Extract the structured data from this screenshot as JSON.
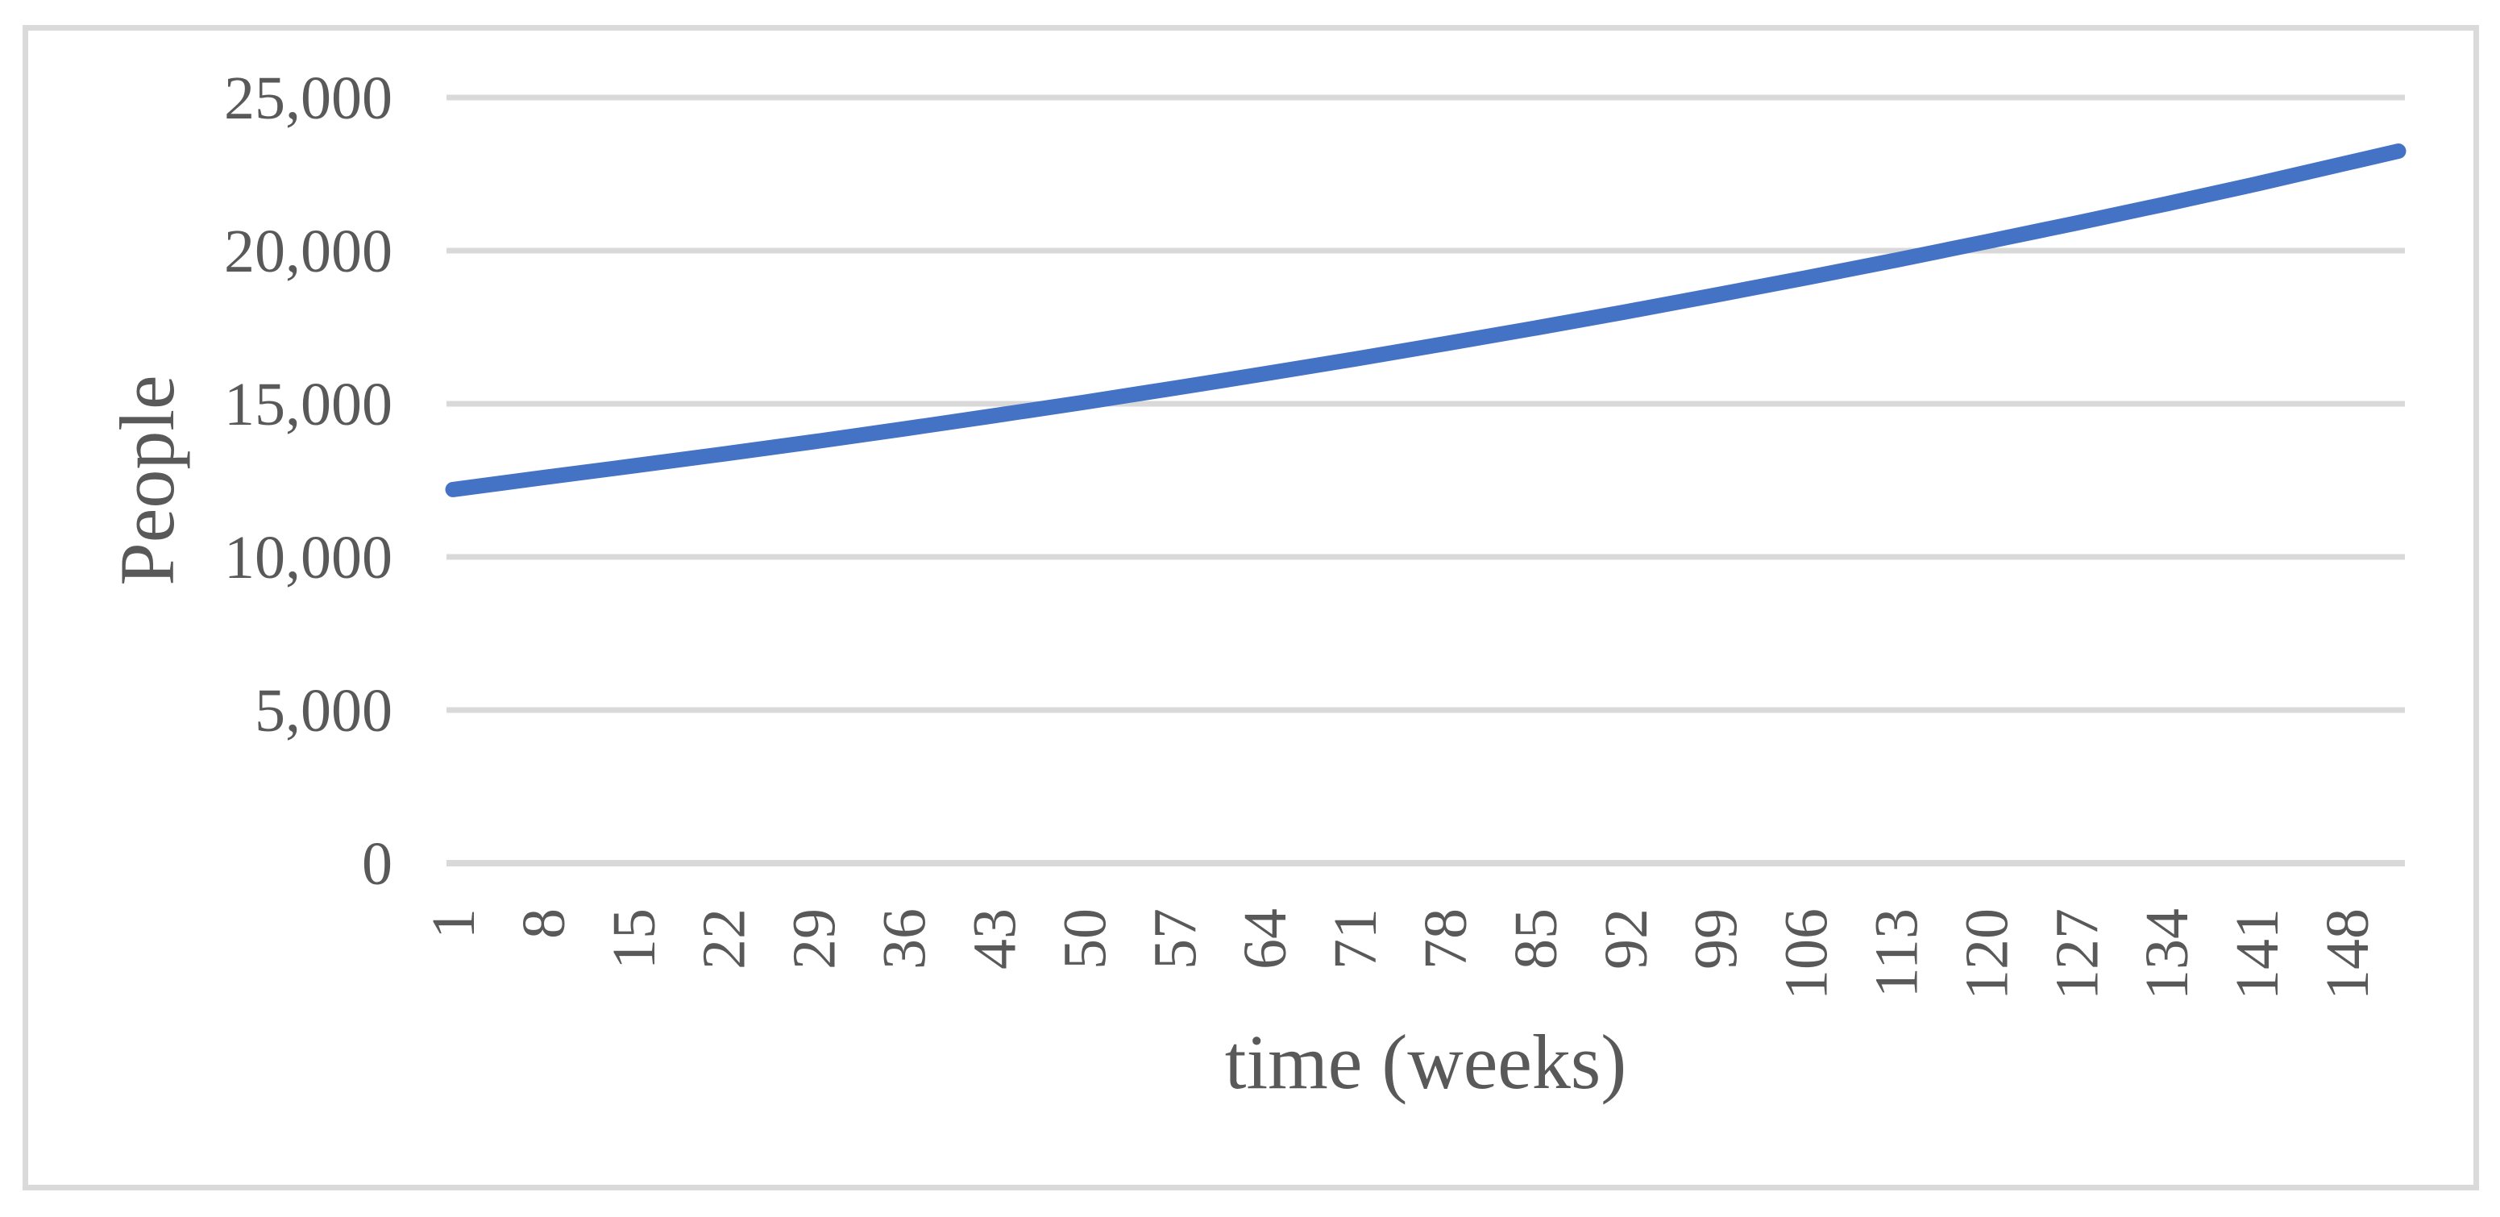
{
  "chart_data": {
    "type": "line",
    "title": "",
    "xlabel": "time (weeks)",
    "ylabel": "People",
    "x_tick_labels": [
      1,
      8,
      15,
      22,
      29,
      36,
      43,
      50,
      57,
      64,
      71,
      78,
      85,
      92,
      99,
      106,
      113,
      120,
      127,
      134,
      141,
      148
    ],
    "y_ticks": [
      {
        "value": 0,
        "label": "0"
      },
      {
        "value": 5000,
        "label": "5,000"
      },
      {
        "value": 10000,
        "label": "10,000"
      },
      {
        "value": 15000,
        "label": "15,000"
      },
      {
        "value": 20000,
        "label": "20,000"
      },
      {
        "value": 25000,
        "label": "25,000"
      }
    ],
    "ylim": [
      0,
      25000
    ],
    "x_categories_total": 152,
    "grid": "horizontal",
    "legend_visible": false,
    "series": [
      {
        "name": "People",
        "color": "#4472C4",
        "points": [
          [
            1,
            12200
          ],
          [
            8,
            12590
          ],
          [
            15,
            12970
          ],
          [
            22,
            13360
          ],
          [
            29,
            13760
          ],
          [
            36,
            14180
          ],
          [
            43,
            14610
          ],
          [
            50,
            15050
          ],
          [
            57,
            15510
          ],
          [
            64,
            15980
          ],
          [
            71,
            16460
          ],
          [
            78,
            16960
          ],
          [
            85,
            17470
          ],
          [
            92,
            18000
          ],
          [
            99,
            18550
          ],
          [
            106,
            19110
          ],
          [
            113,
            19690
          ],
          [
            120,
            20290
          ],
          [
            127,
            20900
          ],
          [
            134,
            21530
          ],
          [
            141,
            22180
          ],
          [
            148,
            22860
          ],
          [
            152,
            23250
          ]
        ]
      }
    ],
    "colors": {
      "gridline": "#d9d9d9",
      "axis_line": "#d9d9d9",
      "tick_text": "#595959",
      "frame_border": "#dadada",
      "background": "#ffffff"
    }
  }
}
